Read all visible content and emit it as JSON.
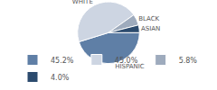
{
  "chart_data": {
    "type": "pie",
    "categories": [
      "HISPANIC",
      "WHITE",
      "BLACK",
      "ASIAN"
    ],
    "values": [
      45.2,
      45.0,
      5.8,
      4.0
    ],
    "value_labels": [
      "45.2%",
      "45.0%",
      "5.8%",
      "4.0%"
    ],
    "colors": [
      "#5f7fa6",
      "#cdd5e2",
      "#9eabbd",
      "#2c4b6e"
    ],
    "legend": "bottom"
  }
}
